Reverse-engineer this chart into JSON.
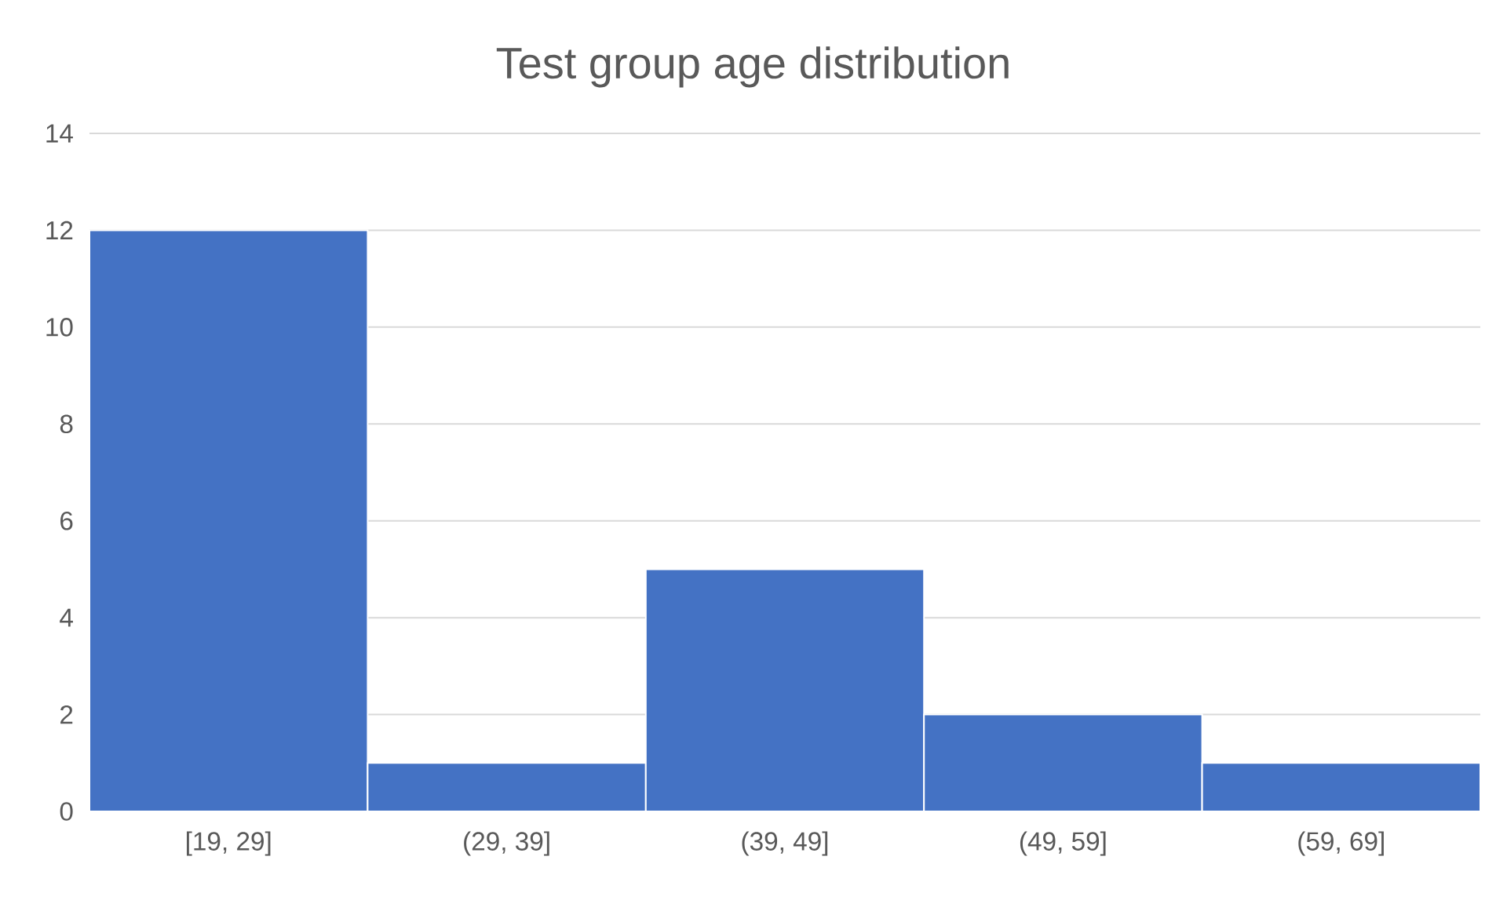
{
  "chart_data": {
    "type": "bar",
    "title": "Test group age distribution",
    "categories": [
      "[19, 29]",
      "(29, 39]",
      "(39, 49]",
      "(49, 59]",
      "(59, 69]"
    ],
    "values": [
      12,
      1,
      5,
      2,
      1
    ],
    "color": "#4472c4",
    "ylim": [
      0,
      14
    ],
    "yticks": [
      0,
      2,
      4,
      6,
      8,
      10,
      12,
      14
    ],
    "grid": "y"
  }
}
